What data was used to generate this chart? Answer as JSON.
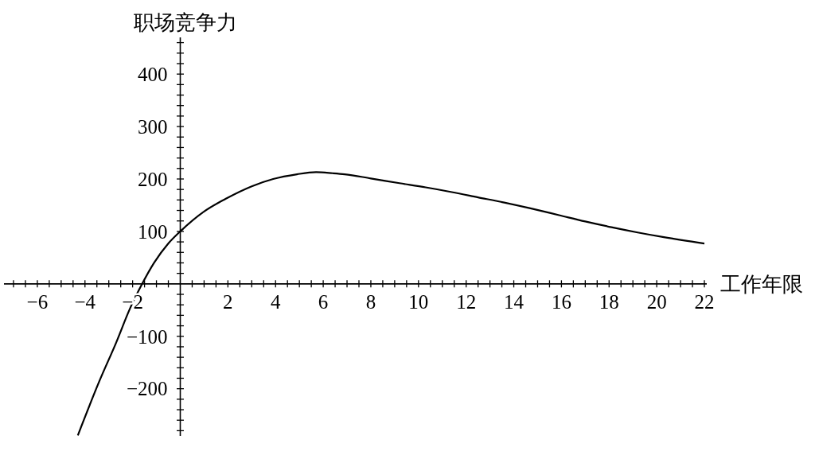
{
  "chart_data": {
    "type": "line",
    "xlabel": "工作年限",
    "ylabel": "职场竞争力",
    "color": "#000000",
    "x": [
      -4.3,
      -3.4,
      -2.7,
      -2.1,
      -1.6,
      -1.1,
      -0.5,
      0,
      1.0,
      1.9,
      3.0,
      3.9,
      4.9,
      5.7,
      6.4,
      6.9,
      8.0,
      9.2,
      10.3,
      11.4,
      12.5,
      13.6,
      14.7,
      15.9,
      17.0,
      18.1,
      19.2,
      20.3,
      22.0
    ],
    "values": [
      -289,
      -186,
      -113,
      -46,
      0,
      40,
      77,
      100,
      138,
      162,
      186,
      200,
      209,
      213,
      211,
      209,
      201,
      192,
      184,
      175,
      165,
      155,
      144,
      131,
      119,
      108,
      98,
      89,
      77
    ],
    "xlim": [
      -7.4,
      22.1
    ],
    "ylim": [
      -290,
      470
    ],
    "xticks": [
      {
        "value": -7,
        "label": null
      },
      {
        "value": -6.5,
        "label": null
      },
      {
        "value": -6,
        "label": "−6"
      },
      {
        "value": -5.5,
        "label": null
      },
      {
        "value": -5,
        "label": null
      },
      {
        "value": -4.5,
        "label": null
      },
      {
        "value": -4,
        "label": "−4"
      },
      {
        "value": -3.5,
        "label": null
      },
      {
        "value": -3,
        "label": null
      },
      {
        "value": -2.5,
        "label": null
      },
      {
        "value": -2,
        "label": "−2"
      },
      {
        "value": -1.5,
        "label": null
      },
      {
        "value": -1,
        "label": null
      },
      {
        "value": -0.5,
        "label": null
      },
      {
        "value": 0.5,
        "label": null
      },
      {
        "value": 1,
        "label": null
      },
      {
        "value": 1.5,
        "label": null
      },
      2,
      {
        "value": 2.5,
        "label": null
      },
      {
        "value": 3,
        "label": null
      },
      {
        "value": 3.5,
        "label": null
      },
      4,
      {
        "value": 4.5,
        "label": null
      },
      {
        "value": 5,
        "label": null
      },
      {
        "value": 5.5,
        "label": null
      },
      6,
      {
        "value": 6.5,
        "label": null
      },
      {
        "value": 7,
        "label": null
      },
      {
        "value": 7.5,
        "label": null
      },
      8,
      {
        "value": 8.5,
        "label": null
      },
      {
        "value": 9,
        "label": null
      },
      {
        "value": 9.5,
        "label": null
      },
      10,
      {
        "value": 10.5,
        "label": null
      },
      {
        "value": 11,
        "label": null
      },
      {
        "value": 11.5,
        "label": null
      },
      12,
      {
        "value": 12.5,
        "label": null
      },
      {
        "value": 13,
        "label": null
      },
      {
        "value": 13.5,
        "label": null
      },
      14,
      {
        "value": 14.5,
        "label": null
      },
      {
        "value": 15,
        "label": null
      },
      {
        "value": 15.5,
        "label": null
      },
      16,
      {
        "value": 16.5,
        "label": null
      },
      {
        "value": 17,
        "label": null
      },
      {
        "value": 17.5,
        "label": null
      },
      18,
      {
        "value": 18.5,
        "label": null
      },
      {
        "value": 19,
        "label": null
      },
      {
        "value": 19.5,
        "label": null
      },
      20,
      {
        "value": 20.5,
        "label": null
      },
      {
        "value": 21,
        "label": null
      },
      {
        "value": 21.5,
        "label": null
      },
      22
    ],
    "yticks": [
      {
        "value": -280,
        "label": null
      },
      {
        "value": -260,
        "label": null
      },
      {
        "value": -240,
        "label": null
      },
      {
        "value": -220,
        "label": null
      },
      {
        "value": -200,
        "label": "−200"
      },
      {
        "value": -180,
        "label": null
      },
      {
        "value": -160,
        "label": null
      },
      {
        "value": -140,
        "label": null
      },
      {
        "value": -120,
        "label": null
      },
      {
        "value": -100,
        "label": "−100"
      },
      {
        "value": -80,
        "label": null
      },
      {
        "value": -60,
        "label": null
      },
      {
        "value": -40,
        "label": null
      },
      {
        "value": -20,
        "label": null
      },
      {
        "value": 20,
        "label": null
      },
      {
        "value": 40,
        "label": null
      },
      {
        "value": 60,
        "label": null
      },
      {
        "value": 80,
        "label": null
      },
      100,
      {
        "value": 120,
        "label": null
      },
      {
        "value": 140,
        "label": null
      },
      {
        "value": 160,
        "label": null
      },
      {
        "value": 180,
        "label": null
      },
      200,
      {
        "value": 220,
        "label": null
      },
      {
        "value": 240,
        "label": null
      },
      {
        "value": 260,
        "label": null
      },
      {
        "value": 280,
        "label": null
      },
      300,
      {
        "value": 320,
        "label": null
      },
      {
        "value": 340,
        "label": null
      },
      {
        "value": 360,
        "label": null
      },
      {
        "value": 380,
        "label": null
      },
      400,
      {
        "value": 420,
        "label": null
      },
      {
        "value": 440,
        "label": null
      },
      {
        "value": 460,
        "label": null
      }
    ]
  }
}
